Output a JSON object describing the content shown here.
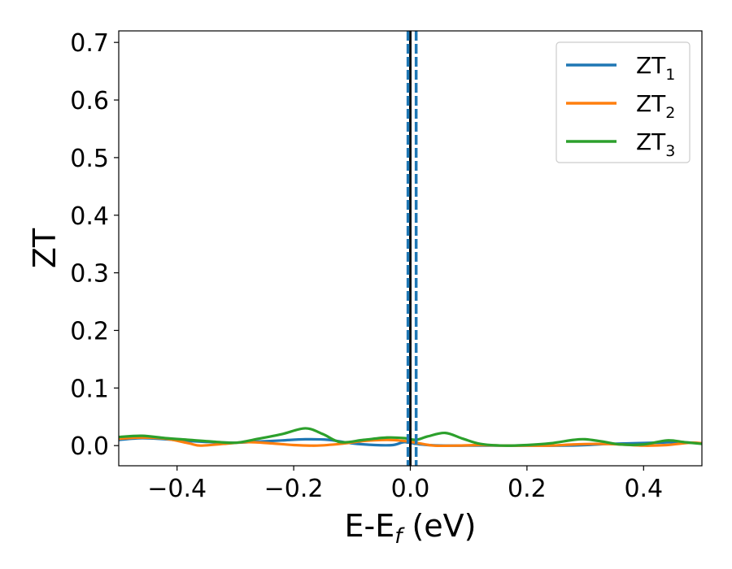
{
  "chart_data": {
    "type": "line",
    "title": "",
    "xlabel": "E-E",
    "xlabel_sub": "f",
    "xlabel_unit": " (eV)",
    "ylabel": "ZT",
    "xlim": [
      -0.5,
      0.5
    ],
    "ylim": [
      -0.035,
      0.72
    ],
    "x_ticks": [
      -0.4,
      -0.2,
      0.0,
      0.2,
      0.4
    ],
    "x_tick_labels": [
      "−0.4",
      "−0.2",
      "0.0",
      "0.2",
      "0.4"
    ],
    "y_ticks": [
      0.0,
      0.1,
      0.2,
      0.3,
      0.4,
      0.5,
      0.6,
      0.7
    ],
    "y_tick_labels": [
      "0.0",
      "0.1",
      "0.2",
      "0.3",
      "0.4",
      "0.5",
      "0.6",
      "0.7"
    ],
    "grid": false,
    "legend_position": "top-right",
    "series": [
      {
        "name": "ZT",
        "name_sub": "1",
        "color": "#1f77b4",
        "x": [
          -0.5,
          -0.46,
          -0.42,
          -0.38,
          -0.34,
          -0.3,
          -0.26,
          -0.22,
          -0.18,
          -0.14,
          -0.1,
          -0.06,
          -0.03,
          -0.01,
          0.01,
          0.03,
          0.06,
          0.1,
          0.14,
          0.18,
          0.22,
          0.26,
          0.3,
          0.34,
          0.38,
          0.42,
          0.46,
          0.5
        ],
        "y": [
          0.01,
          0.013,
          0.011,
          0.008,
          0.006,
          0.005,
          0.007,
          0.009,
          0.011,
          0.01,
          0.004,
          0.001,
          0.001,
          0.006,
          0.003,
          0.001,
          0.0,
          0.0,
          0.0,
          0.0,
          0.0,
          0.0,
          0.001,
          0.003,
          0.004,
          0.005,
          0.006,
          0.004
        ]
      },
      {
        "name": "ZT",
        "name_sub": "2",
        "color": "#ff7f0e",
        "x": [
          -0.5,
          -0.46,
          -0.42,
          -0.38,
          -0.36,
          -0.32,
          -0.28,
          -0.24,
          -0.2,
          -0.16,
          -0.12,
          -0.08,
          -0.04,
          -0.01,
          0.01,
          0.04,
          0.08,
          0.12,
          0.16,
          0.2,
          0.24,
          0.28,
          0.32,
          0.36,
          0.4,
          0.44,
          0.48,
          0.5
        ],
        "y": [
          0.012,
          0.014,
          0.012,
          0.004,
          0.0,
          0.003,
          0.006,
          0.004,
          0.001,
          0.0,
          0.003,
          0.008,
          0.01,
          0.008,
          0.005,
          0.0,
          0.0,
          0.001,
          0.0,
          0.0,
          0.0,
          0.002,
          0.003,
          0.002,
          0.0,
          0.001,
          0.005,
          0.004
        ]
      },
      {
        "name": "ZT",
        "name_sub": "3",
        "color": "#2ca02c",
        "x": [
          -0.5,
          -0.46,
          -0.42,
          -0.38,
          -0.34,
          -0.3,
          -0.26,
          -0.22,
          -0.18,
          -0.15,
          -0.12,
          -0.08,
          -0.04,
          -0.01,
          0.01,
          0.03,
          0.06,
          0.09,
          0.12,
          0.16,
          0.2,
          0.24,
          0.28,
          0.3,
          0.33,
          0.36,
          0.4,
          0.44,
          0.47,
          0.5
        ],
        "y": [
          0.015,
          0.017,
          0.013,
          0.01,
          0.007,
          0.005,
          0.012,
          0.02,
          0.03,
          0.02,
          0.006,
          0.01,
          0.014,
          0.013,
          0.01,
          0.016,
          0.022,
          0.012,
          0.003,
          0.0,
          0.001,
          0.004,
          0.01,
          0.011,
          0.007,
          0.002,
          0.002,
          0.009,
          0.006,
          0.003
        ]
      }
    ],
    "vertical_lines": [
      {
        "x": 0.0,
        "color": "#000000",
        "style": "solid"
      },
      {
        "x": -0.004,
        "color": "#1f77b4",
        "style": "dashed"
      },
      {
        "x": 0.01,
        "color": "#1f77b4",
        "style": "dashed"
      }
    ]
  }
}
